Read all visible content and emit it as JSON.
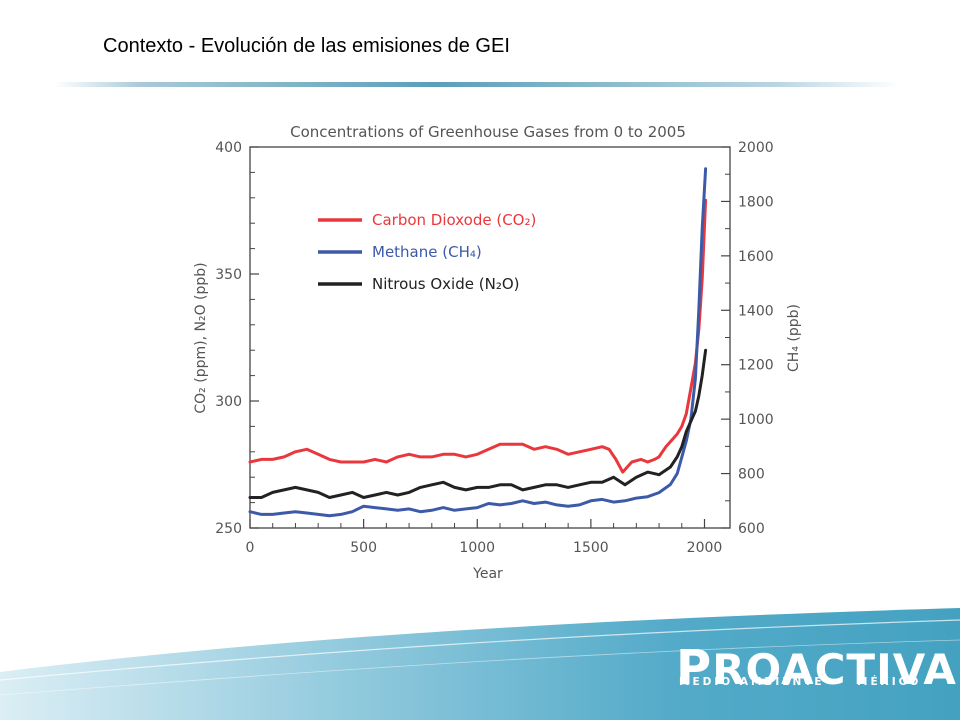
{
  "slide": {
    "title": "Contexto - Evolución de las emisiones de GEI"
  },
  "logo": {
    "name": "PROACTIVA",
    "first_letter": "P",
    "rest": "ROACTIVA",
    "line1": "MEDIO AMBIENTE",
    "line2": "MÉXICO",
    "color": "#3a9dbd"
  },
  "chart_data": {
    "type": "line",
    "title": "Concentrations of Greenhouse Gases from 0 to 2005",
    "xlabel": "Year",
    "ylabel_left": "CO₂ (ppm), N₂O (ppb)",
    "ylabel_right": "CH₄ (ppb)",
    "xlim": [
      0,
      2100
    ],
    "ylim_left": [
      250,
      400
    ],
    "ylim_right": [
      600,
      2000
    ],
    "x_ticks": [
      0,
      500,
      1000,
      1500,
      2000
    ],
    "y_ticks_left": [
      250,
      300,
      350,
      400
    ],
    "y_ticks_right": [
      600,
      800,
      1000,
      1200,
      1400,
      1600,
      1800,
      2000
    ],
    "legend_position": "upper-left",
    "series": [
      {
        "name": "Carbon Dioxode (CO₂)",
        "axis": "left",
        "color": "#e8383d",
        "x": [
          0,
          50,
          100,
          150,
          200,
          250,
          300,
          350,
          400,
          450,
          500,
          550,
          600,
          650,
          700,
          750,
          800,
          850,
          900,
          950,
          1000,
          1050,
          1100,
          1150,
          1200,
          1250,
          1300,
          1350,
          1400,
          1450,
          1500,
          1550,
          1580,
          1610,
          1640,
          1680,
          1720,
          1750,
          1780,
          1800,
          1830,
          1860,
          1880,
          1900,
          1920,
          1940,
          1960,
          1975,
          1990,
          2005
        ],
        "values": [
          276,
          277,
          277,
          278,
          280,
          281,
          279,
          277,
          276,
          276,
          276,
          277,
          276,
          278,
          279,
          278,
          278,
          279,
          279,
          278,
          279,
          281,
          283,
          283,
          283,
          281,
          282,
          281,
          279,
          280,
          281,
          282,
          281,
          277,
          272,
          276,
          277,
          276,
          277,
          278,
          282,
          285,
          287,
          290,
          295,
          305,
          315,
          328,
          348,
          379
        ]
      },
      {
        "name": "Methane (CH₄)",
        "axis": "right",
        "color": "#3d5aa8",
        "x": [
          0,
          50,
          100,
          150,
          200,
          250,
          300,
          350,
          400,
          450,
          500,
          550,
          600,
          650,
          700,
          750,
          800,
          850,
          900,
          950,
          1000,
          1050,
          1100,
          1150,
          1200,
          1250,
          1300,
          1350,
          1400,
          1450,
          1500,
          1550,
          1600,
          1650,
          1700,
          1750,
          1800,
          1850,
          1880,
          1900,
          1920,
          1940,
          1960,
          1975,
          1990,
          2005
        ],
        "values": [
          660,
          650,
          650,
          655,
          660,
          655,
          650,
          645,
          650,
          660,
          680,
          675,
          670,
          665,
          670,
          660,
          665,
          675,
          665,
          670,
          675,
          690,
          685,
          690,
          700,
          690,
          695,
          685,
          680,
          685,
          700,
          705,
          695,
          700,
          710,
          715,
          730,
          760,
          800,
          860,
          920,
          1000,
          1150,
          1400,
          1700,
          1920
        ]
      },
      {
        "name": "Nitrous Oxide (N₂O)",
        "axis": "left",
        "color": "#222222",
        "x": [
          0,
          50,
          100,
          150,
          200,
          250,
          300,
          350,
          400,
          450,
          500,
          550,
          600,
          650,
          700,
          750,
          800,
          850,
          900,
          950,
          1000,
          1050,
          1100,
          1150,
          1200,
          1250,
          1300,
          1350,
          1400,
          1450,
          1500,
          1550,
          1600,
          1650,
          1700,
          1750,
          1800,
          1850,
          1880,
          1900,
          1920,
          1940,
          1960,
          1975,
          1990,
          2005
        ],
        "values": [
          262,
          262,
          264,
          265,
          266,
          265,
          264,
          262,
          263,
          264,
          262,
          263,
          264,
          263,
          264,
          266,
          267,
          268,
          266,
          265,
          266,
          266,
          267,
          267,
          265,
          266,
          267,
          267,
          266,
          267,
          268,
          268,
          270,
          267,
          270,
          272,
          271,
          274,
          278,
          282,
          288,
          292,
          296,
          302,
          310,
          320
        ]
      }
    ]
  }
}
